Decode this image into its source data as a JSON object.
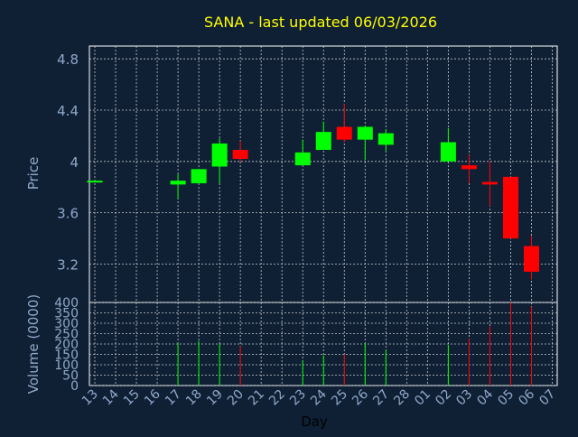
{
  "title": "SANA - last updated 06/03/2026",
  "colors": {
    "background": "#0f2035",
    "title": "#ffff00",
    "axis_text": "#8fa9c9",
    "grid": "#c8c8c8",
    "frame": "#ffffff",
    "up": "#00ff00",
    "down": "#ff0000"
  },
  "chart_data": [
    {
      "type": "candlestick",
      "ylabel": "Price",
      "ylim": [
        2.9,
        4.9
      ],
      "yticks": [
        "3.2",
        "3.6",
        "4",
        "4.4",
        "4.8"
      ],
      "grid": true,
      "x": [
        "13",
        "14",
        "15",
        "16",
        "17",
        "18",
        "19",
        "20",
        "21",
        "22",
        "23",
        "24",
        "25",
        "26",
        "27",
        "28",
        "01",
        "02",
        "03",
        "04",
        "05",
        "06",
        "07"
      ],
      "candles": [
        {
          "day": "13",
          "open": 3.85,
          "high": 3.85,
          "low": 3.85,
          "close": 3.85
        },
        {
          "day": "17",
          "open": 3.82,
          "high": 3.9,
          "low": 3.71,
          "close": 3.85
        },
        {
          "day": "18",
          "open": 3.83,
          "high": 3.94,
          "low": 3.83,
          "close": 3.94
        },
        {
          "day": "19",
          "open": 3.96,
          "high": 4.18,
          "low": 3.83,
          "close": 4.14
        },
        {
          "day": "20",
          "open": 4.09,
          "high": 4.16,
          "low": 4.0,
          "close": 4.02
        },
        {
          "day": "23",
          "open": 3.97,
          "high": 4.17,
          "low": 3.97,
          "close": 4.07
        },
        {
          "day": "24",
          "open": 4.09,
          "high": 4.31,
          "low": 4.09,
          "close": 4.23
        },
        {
          "day": "25",
          "open": 4.27,
          "high": 4.45,
          "low": 4.15,
          "close": 4.17
        },
        {
          "day": "26",
          "open": 4.17,
          "high": 4.28,
          "low": 4.01,
          "close": 4.27
        },
        {
          "day": "27",
          "open": 4.13,
          "high": 4.25,
          "low": 4.08,
          "close": 4.22
        },
        {
          "day": "02",
          "open": 4.0,
          "high": 4.26,
          "low": 4.0,
          "close": 4.15
        },
        {
          "day": "03",
          "open": 3.97,
          "high": 4.05,
          "low": 3.83,
          "close": 3.94
        },
        {
          "day": "04",
          "open": 3.84,
          "high": 4.0,
          "low": 3.65,
          "close": 3.82
        },
        {
          "day": "05",
          "open": 3.88,
          "high": 3.88,
          "low": 3.4,
          "close": 3.4
        },
        {
          "day": "06",
          "open": 3.34,
          "high": 3.42,
          "low": 3.08,
          "close": 3.14
        }
      ]
    },
    {
      "type": "bar",
      "ylabel": "Volume (0000)",
      "xlabel": "Day",
      "ylim": [
        0,
        400
      ],
      "yticks": [
        "0",
        "50",
        "100",
        "150",
        "200",
        "250",
        "300",
        "350",
        "400"
      ],
      "grid": true,
      "categories": [
        "13",
        "14",
        "15",
        "16",
        "17",
        "18",
        "19",
        "20",
        "21",
        "22",
        "23",
        "24",
        "25",
        "26",
        "27",
        "28",
        "01",
        "02",
        "03",
        "04",
        "05",
        "06",
        "07"
      ],
      "bars": [
        {
          "day": "17",
          "value": 205,
          "dir": "up"
        },
        {
          "day": "18",
          "value": 215,
          "dir": "up"
        },
        {
          "day": "19",
          "value": 200,
          "dir": "up"
        },
        {
          "day": "20",
          "value": 190,
          "dir": "down"
        },
        {
          "day": "23",
          "value": 120,
          "dir": "up"
        },
        {
          "day": "24",
          "value": 145,
          "dir": "up"
        },
        {
          "day": "25",
          "value": 150,
          "dir": "down"
        },
        {
          "day": "26",
          "value": 205,
          "dir": "up"
        },
        {
          "day": "27",
          "value": 170,
          "dir": "up"
        },
        {
          "day": "02",
          "value": 195,
          "dir": "up"
        },
        {
          "day": "03",
          "value": 225,
          "dir": "down"
        },
        {
          "day": "04",
          "value": 285,
          "dir": "down"
        },
        {
          "day": "05",
          "value": 400,
          "dir": "down"
        },
        {
          "day": "06",
          "value": 380,
          "dir": "down"
        }
      ]
    }
  ]
}
